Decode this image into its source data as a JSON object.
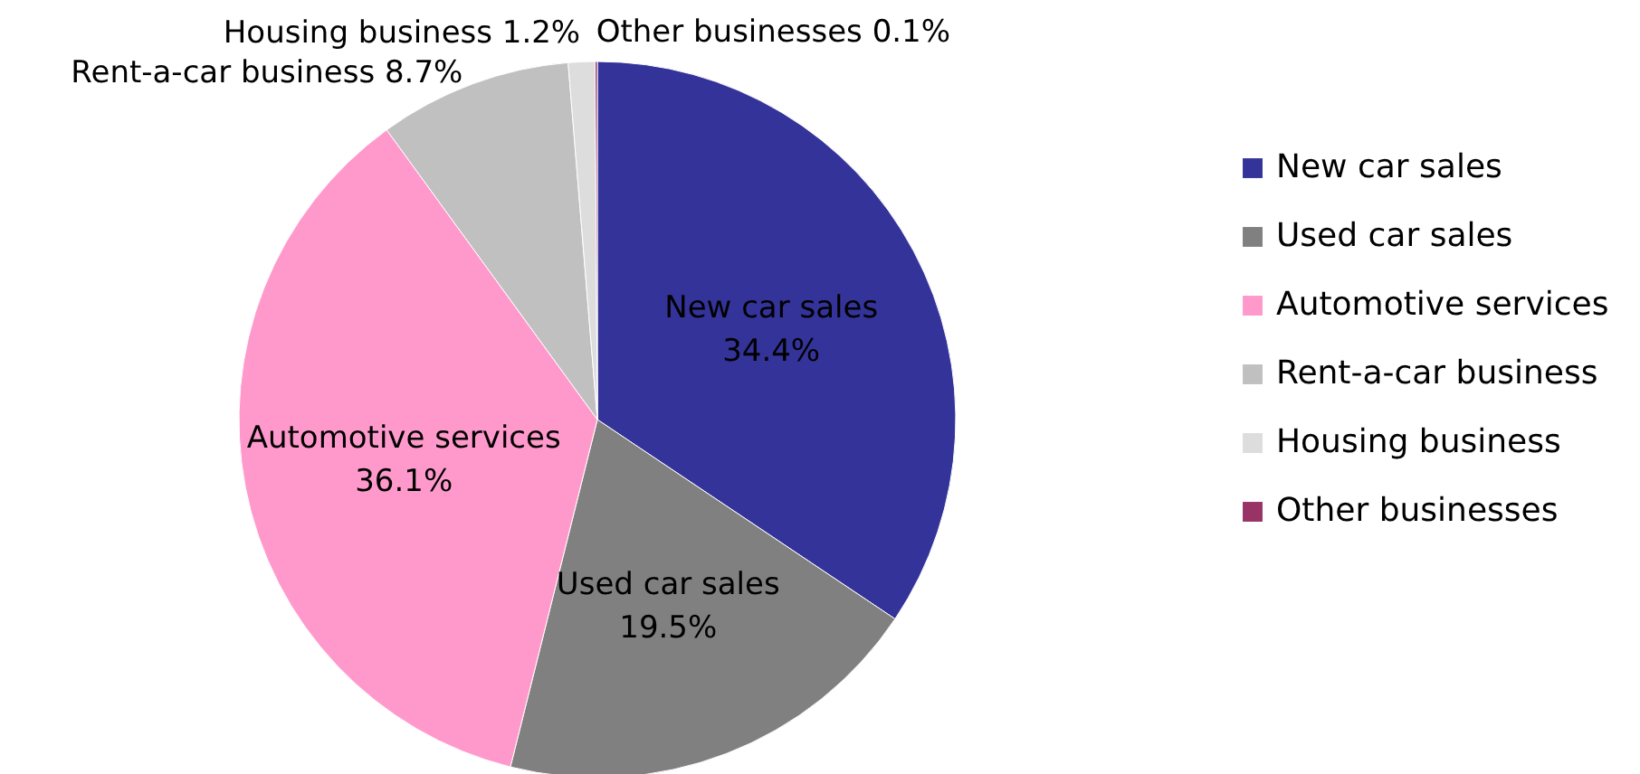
{
  "chart_data": {
    "type": "pie",
    "categories": [
      "New car sales",
      "Used car sales",
      "Automotive services",
      "Rent-a-car business",
      "Housing business",
      "Other businesses"
    ],
    "values": [
      34.4,
      19.5,
      36.1,
      8.7,
      1.2,
      0.1
    ],
    "value_labels": [
      "34.4%",
      "19.5%",
      "36.1%",
      "8.7%",
      "1.2%",
      "0.1%"
    ],
    "colors": [
      "#333399",
      "#808080",
      "#ff99cc",
      "#c0c0c0",
      "#dddddd",
      "#993366"
    ],
    "legend": "right"
  }
}
